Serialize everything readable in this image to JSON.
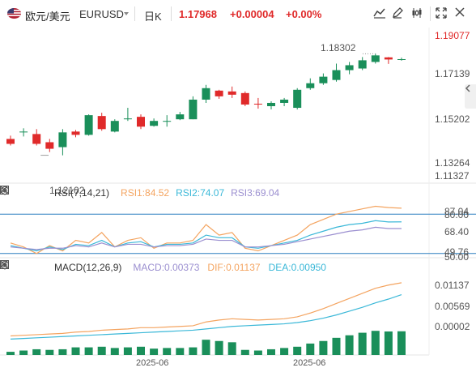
{
  "header": {
    "pair_name": "欧元/美元",
    "pair_code": "EURUSD",
    "timeframe": "日K",
    "last_price": "1.17968",
    "change": "+0.00004",
    "change_pct": "+0.00%"
  },
  "price_axis": [
    "1.19077",
    "1.17139",
    "1.15202",
    "1.13264",
    "1.11327"
  ],
  "annotations": {
    "high": "1.18302",
    "low": "1.12102"
  },
  "rsi": {
    "title": "RSI(7,14,21)",
    "rsi1": "RSI1:84.52",
    "rsi2": "RSI2:74.07",
    "rsi3": "RSI3:69.04",
    "axis": [
      "87.04",
      "80.00",
      "68.40",
      "49.76",
      "50.00"
    ]
  },
  "macd": {
    "title": "MACD(12,26,9)",
    "macd": "MACD:0.00373",
    "dif": "DIF:0.01137",
    "dea": "DEA:0.00950",
    "axis": [
      "0.01137",
      "0.00569",
      "0.00002"
    ]
  },
  "x_axis": [
    "2025-06",
    "2025-06"
  ],
  "colors": {
    "up": "#1a8f5a",
    "down": "#e02a2a",
    "rsi1": "#f4a460",
    "rsi2": "#3bb8d8",
    "rsi3": "#9b8fd0",
    "dif": "#f4a460",
    "dea": "#3bb8d8",
    "hline": "#2a7fbf"
  },
  "chart_data": [
    {
      "type": "candlestick",
      "title": "",
      "ylim": [
        1.105,
        1.198
      ],
      "candles": [
        {
          "o": 1.131,
          "h": 1.133,
          "l": 1.127,
          "c": 1.128
        },
        {
          "o": 1.135,
          "h": 1.1375,
          "l": 1.1325,
          "c": 1.1355
        },
        {
          "o": 1.134,
          "h": 1.137,
          "l": 1.127,
          "c": 1.128
        },
        {
          "o": 1.129,
          "h": 1.131,
          "l": 1.123,
          "c": 1.125
        },
        {
          "o": 1.126,
          "h": 1.137,
          "l": 1.121,
          "c": 1.135
        },
        {
          "o": 1.1355,
          "h": 1.1365,
          "l": 1.132,
          "c": 1.1335
        },
        {
          "o": 1.1335,
          "h": 1.146,
          "l": 1.133,
          "c": 1.1455
        },
        {
          "o": 1.145,
          "h": 1.147,
          "l": 1.136,
          "c": 1.137
        },
        {
          "o": 1.1355,
          "h": 1.143,
          "l": 1.135,
          "c": 1.142
        },
        {
          "o": 1.143,
          "h": 1.15,
          "l": 1.142,
          "c": 1.1435
        },
        {
          "o": 1.1445,
          "h": 1.146,
          "l": 1.137,
          "c": 1.1385
        },
        {
          "o": 1.139,
          "h": 1.1435,
          "l": 1.1385,
          "c": 1.142
        },
        {
          "o": 1.1415,
          "h": 1.1455,
          "l": 1.1385,
          "c": 1.142
        },
        {
          "o": 1.143,
          "h": 1.1475,
          "l": 1.1425,
          "c": 1.146
        },
        {
          "o": 1.143,
          "h": 1.157,
          "l": 1.143,
          "c": 1.155
        },
        {
          "o": 1.155,
          "h": 1.164,
          "l": 1.153,
          "c": 1.162
        },
        {
          "o": 1.1605,
          "h": 1.161,
          "l": 1.1555,
          "c": 1.157
        },
        {
          "o": 1.16,
          "h": 1.163,
          "l": 1.156,
          "c": 1.158
        },
        {
          "o": 1.159,
          "h": 1.16,
          "l": 1.151,
          "c": 1.152
        },
        {
          "o": 1.1525,
          "h": 1.156,
          "l": 1.1495,
          "c": 1.152
        },
        {
          "o": 1.151,
          "h": 1.154,
          "l": 1.149,
          "c": 1.153
        },
        {
          "o": 1.153,
          "h": 1.156,
          "l": 1.151,
          "c": 1.155
        },
        {
          "o": 1.15,
          "h": 1.162,
          "l": 1.149,
          "c": 1.161
        },
        {
          "o": 1.162,
          "h": 1.168,
          "l": 1.161,
          "c": 1.165
        },
        {
          "o": 1.165,
          "h": 1.171,
          "l": 1.164,
          "c": 1.169
        },
        {
          "o": 1.167,
          "h": 1.177,
          "l": 1.166,
          "c": 1.173
        },
        {
          "o": 1.173,
          "h": 1.178,
          "l": 1.1705,
          "c": 1.176
        },
        {
          "o": 1.174,
          "h": 1.181,
          "l": 1.173,
          "c": 1.179
        },
        {
          "o": 1.178,
          "h": 1.183,
          "l": 1.177,
          "c": 1.182
        },
        {
          "o": 1.1808,
          "h": 1.181,
          "l": 1.1768,
          "c": 1.1795
        },
        {
          "o": 1.1796,
          "h": 1.1806,
          "l": 1.1788,
          "c": 1.1797
        }
      ]
    },
    {
      "type": "line",
      "title": "RSI(7,14,21)",
      "ylim": [
        48,
        90
      ],
      "series": [
        {
          "name": "RSI1",
          "values": [
            58,
            55,
            50,
            56,
            52,
            60,
            58,
            66,
            55,
            60,
            62,
            54,
            58,
            58,
            60,
            72,
            64,
            66,
            54,
            52,
            56,
            60,
            64,
            72,
            76,
            80,
            82,
            84,
            86,
            85,
            84.5
          ]
        },
        {
          "name": "RSI2",
          "values": [
            56,
            54,
            52,
            55,
            53,
            57,
            56,
            60,
            55,
            58,
            59,
            55,
            57,
            57,
            58,
            64,
            62,
            62,
            55,
            54,
            56,
            58,
            60,
            64,
            67,
            70,
            72,
            73,
            75,
            74,
            74.1
          ]
        },
        {
          "name": "RSI3",
          "values": [
            55,
            54,
            53,
            54,
            54,
            56,
            55,
            58,
            55,
            57,
            57,
            55,
            56,
            56,
            57,
            61,
            60,
            60,
            55,
            55,
            56,
            57,
            59,
            61,
            63,
            65,
            67,
            68,
            70,
            69,
            69.0
          ]
        }
      ]
    },
    {
      "type": "bar",
      "title": "MACD(12,26,9)",
      "ylim": [
        0,
        0.0125
      ],
      "series": [
        {
          "name": "MACD",
          "values": [
            0.0005,
            0.0007,
            0.0009,
            0.0008,
            0.0009,
            0.0012,
            0.0012,
            0.0013,
            0.0011,
            0.0012,
            0.0013,
            0.001,
            0.0011,
            0.0011,
            0.0012,
            0.0024,
            0.0022,
            0.002,
            0.0008,
            0.0007,
            0.0009,
            0.0011,
            0.0013,
            0.0018,
            0.0022,
            0.0027,
            0.0031,
            0.0035,
            0.0038,
            0.0037,
            0.00373
          ]
        },
        {
          "name": "DIF",
          "values": [
            0.003,
            0.0031,
            0.0032,
            0.0033,
            0.0034,
            0.0036,
            0.0037,
            0.0039,
            0.004,
            0.0041,
            0.0043,
            0.0043,
            0.0044,
            0.0045,
            0.0046,
            0.0052,
            0.0055,
            0.0057,
            0.0056,
            0.0055,
            0.0056,
            0.0057,
            0.006,
            0.0066,
            0.0073,
            0.0081,
            0.0089,
            0.0097,
            0.0105,
            0.011,
            0.01137
          ]
        },
        {
          "name": "DEA",
          "values": [
            0.0025,
            0.0026,
            0.0027,
            0.0028,
            0.0029,
            0.003,
            0.0031,
            0.0032,
            0.0033,
            0.0034,
            0.0035,
            0.0036,
            0.0037,
            0.0038,
            0.0039,
            0.0041,
            0.0043,
            0.0045,
            0.0046,
            0.0047,
            0.0048,
            0.0049,
            0.0051,
            0.0054,
            0.0058,
            0.0063,
            0.0069,
            0.0075,
            0.0082,
            0.0088,
            0.0095
          ]
        }
      ]
    }
  ]
}
